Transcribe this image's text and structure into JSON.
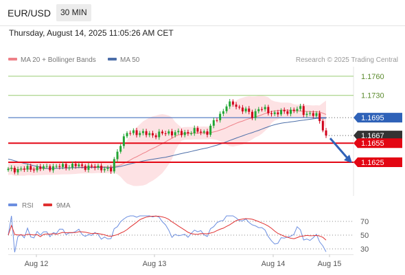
{
  "header": {
    "pair": "EUR/USD",
    "interval": "30 MIN",
    "datetime": "Thursday, August 14, 2025 11:05:26 AM CET"
  },
  "colors": {
    "candle_up": "#22a534",
    "candle_down": "#d0021b",
    "ma20": "#ee8088",
    "band_fill": "#fcd6d8",
    "ma50": "#4c6ea8",
    "resistance": "#98cc70",
    "support": "#e30613",
    "pivot": "#2f62b8",
    "last_price": "#333333",
    "arrow": "#2f62b8",
    "rsi": "#6b8ee0",
    "rsi_ma": "#e03030"
  },
  "legend": {
    "ma20": "MA 20 + Bollinger Bands",
    "ma50": "MA 50",
    "credit": "Research © 2025 Trading Central"
  },
  "rsi_legend": {
    "rsi": "RSI",
    "ma": "9MA"
  },
  "chart_data": [
    {
      "type": "candlestick",
      "title": "EUR/USD",
      "x_labels": [
        "Aug 12",
        "Aug 13",
        "Aug 14",
        "Aug 15"
      ],
      "ylim": [
        1.157,
        1.1775
      ],
      "levels": [
        {
          "name": "resistance-2",
          "value": 1.176,
          "label": "1.1760",
          "style": "resistance"
        },
        {
          "name": "resistance-1",
          "value": 1.173,
          "label": "1.1730",
          "style": "resistance"
        },
        {
          "name": "pivot",
          "value": 1.1695,
          "label": "1.1695",
          "style": "pivot"
        },
        {
          "name": "last-price",
          "value": 1.1667,
          "label": "1.1667",
          "style": "last"
        },
        {
          "name": "support-1",
          "value": 1.1655,
          "label": "1.1655",
          "style": "support"
        },
        {
          "name": "support-2",
          "value": 1.1625,
          "label": "1.1625",
          "style": "support"
        }
      ],
      "series": [
        {
          "name": "MA 20 + Bollinger Bands"
        },
        {
          "name": "MA 50"
        }
      ],
      "arrow": {
        "from": 1.1667,
        "to": 1.1625,
        "direction": "down"
      }
    },
    {
      "type": "line",
      "title": "RSI",
      "ylim": [
        20,
        80
      ],
      "yticks": [
        70,
        50,
        30
      ],
      "series": [
        {
          "name": "RSI"
        },
        {
          "name": "9MA"
        }
      ]
    }
  ]
}
